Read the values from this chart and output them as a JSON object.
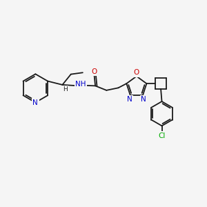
{
  "background_color": "#f5f5f5",
  "bond_color": "#1a1a1a",
  "N_color": "#0000cc",
  "O_color": "#cc0000",
  "Cl_color": "#00aa00",
  "figsize": [
    3.0,
    3.0
  ],
  "dpi": 100,
  "xlim": [
    0,
    10
  ],
  "ylim": [
    0,
    10
  ]
}
